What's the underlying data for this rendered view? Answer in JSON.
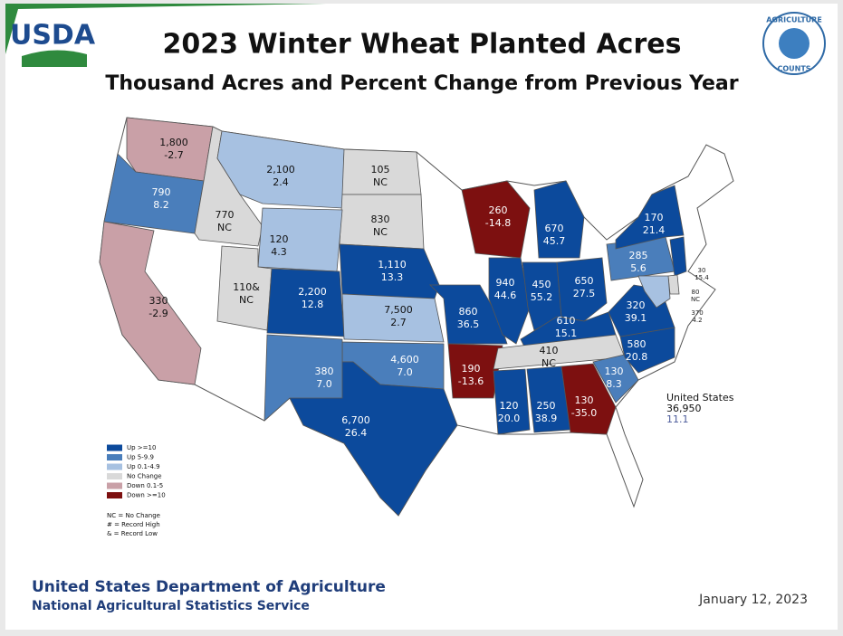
{
  "header": {
    "logo": "USDA",
    "title": "2023 Winter Wheat Planted Acres",
    "subtitle": "Thousand Acres and Percent Change from Previous Year",
    "badge_top": "AGRICULTURE",
    "badge_bottom": "COUNTS"
  },
  "states": [
    {
      "acres": "1,800",
      "change": "-2.7",
      "color": "#c9a0a7"
    },
    {
      "acres": "790",
      "change": "8.2",
      "color": "#4a7ebb"
    },
    {
      "acres": "770",
      "change": "NC",
      "color": "#d9d9d9"
    },
    {
      "acres": "2,100",
      "change": "2.4",
      "color": "#a7c1e1"
    },
    {
      "acres": "105",
      "change": "NC",
      "color": "#d9d9d9"
    },
    {
      "acres": "830",
      "change": "NC",
      "color": "#d9d9d9"
    },
    {
      "acres": "120",
      "change": "4.3",
      "color": "#a7c1e1"
    },
    {
      "acres": "110&",
      "change": "NC",
      "color": "#d9d9d9"
    },
    {
      "acres": "330",
      "change": "-2.9",
      "color": "#c9a0a7"
    },
    {
      "acres": "2,200",
      "change": "12.8",
      "color": "#0c4a9c"
    },
    {
      "acres": "1,110",
      "change": "13.3",
      "color": "#0c4a9c"
    },
    {
      "acres": "7,500",
      "change": "2.7",
      "color": "#a7c1e1"
    },
    {
      "acres": "4,600",
      "change": "7.0",
      "color": "#4a7ebb"
    },
    {
      "acres": "6,700",
      "change": "26.4",
      "color": "#0c4a9c"
    },
    {
      "acres": "380",
      "change": "7.0",
      "color": "#4a7ebb"
    },
    {
      "acres": "860",
      "change": "36.5",
      "color": "#0c4a9c"
    },
    {
      "acres": "190",
      "change": "-13.6",
      "color": "#7d1010"
    },
    {
      "acres": "260",
      "change": "-14.8",
      "color": "#7d1010"
    },
    {
      "acres": "940",
      "change": "44.6",
      "color": "#0c4a9c"
    },
    {
      "acres": "450",
      "change": "55.2",
      "color": "#0c4a9c"
    },
    {
      "acres": "670",
      "change": "45.7",
      "color": "#0c4a9c"
    },
    {
      "acres": "650",
      "change": "27.5",
      "color": "#0c4a9c"
    },
    {
      "acres": "610",
      "change": "15.1",
      "color": "#0c4a9c"
    },
    {
      "acres": "410",
      "change": "NC",
      "color": "#d9d9d9"
    },
    {
      "acres": "120",
      "change": "20.0",
      "color": "#0c4a9c"
    },
    {
      "acres": "250",
      "change": "38.9",
      "color": "#0c4a9c"
    },
    {
      "acres": "130",
      "change": "-35.0",
      "color": "#7d1010"
    },
    {
      "acres": "130",
      "change": "8.3",
      "color": "#4a7ebb"
    },
    {
      "acres": "580",
      "change": "20.8",
      "color": "#0c4a9c"
    },
    {
      "acres": "320",
      "change": "39.1",
      "color": "#0c4a9c"
    },
    {
      "acres": "285",
      "change": "5.6",
      "color": "#4a7ebb"
    },
    {
      "acres": "170",
      "change": "21.4",
      "color": "#0c4a9c"
    },
    {
      "acres": "30",
      "change": "15.4",
      "color": "#0c4a9c"
    },
    {
      "acres": "80",
      "change": "NC",
      "color": "#d9d9d9"
    },
    {
      "acres": "370",
      "change": "4.2",
      "color": "#a7c1e1"
    }
  ],
  "total": {
    "label": "United States",
    "acres": "36,950",
    "change": "11.1"
  },
  "legend": {
    "items": [
      {
        "label": "Up >=10",
        "color": "#0c4a9c"
      },
      {
        "label": "Up 5-9.9",
        "color": "#4a7ebb"
      },
      {
        "label": "Up 0.1-4.9",
        "color": "#a7c1e1"
      },
      {
        "label": "No Change",
        "color": "#d9d9d9"
      },
      {
        "label": "Down 0.1-5",
        "color": "#c9a0a7"
      },
      {
        "label": "Down >=10",
        "color": "#7d1010"
      }
    ],
    "notes": [
      "NC = No Change",
      "# = Record High",
      "& = Record Low"
    ]
  },
  "footer": {
    "org": "United States Department of Agriculture",
    "service": "National Agricultural Statistics Service",
    "date": "January 12, 2023"
  }
}
